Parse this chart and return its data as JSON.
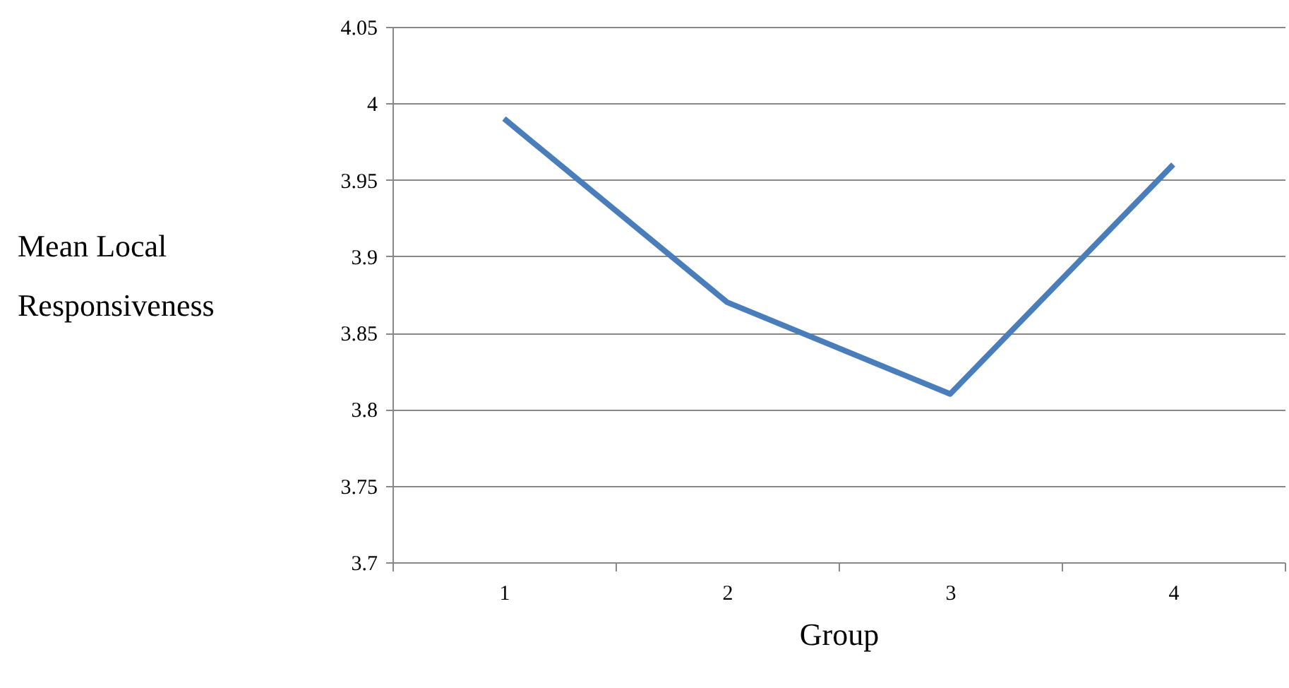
{
  "chart_data": {
    "type": "line",
    "xlabel": "Group",
    "ylabel": "Mean Local Responsiveness",
    "categories": [
      "1",
      "2",
      "3",
      "4"
    ],
    "series": [
      {
        "color": "#4a7ebb",
        "values": [
          3.99,
          3.87,
          3.81,
          3.96
        ]
      }
    ],
    "ylim": [
      3.7,
      4.05
    ],
    "yticks": [
      3.7,
      3.75,
      3.8,
      3.85,
      3.9,
      3.95,
      4,
      4.05
    ],
    "grid": "y",
    "line_style": "solid"
  }
}
